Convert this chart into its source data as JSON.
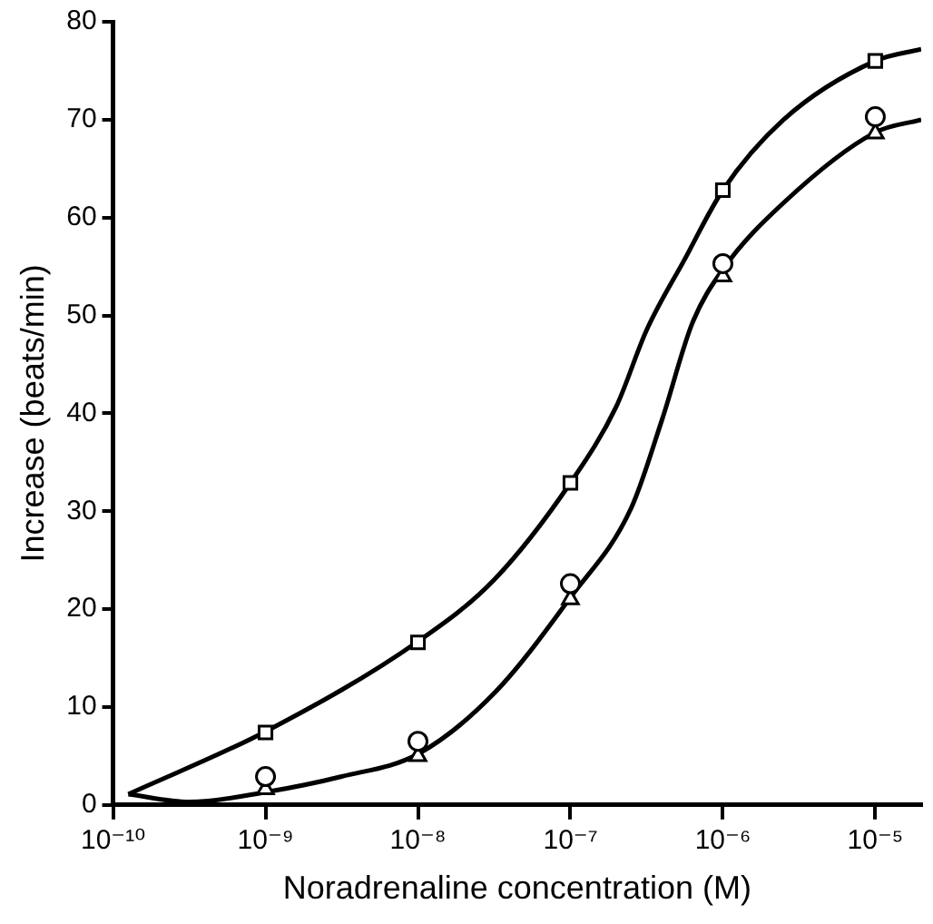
{
  "chart_data": {
    "type": "scatter",
    "xlabel": "Noradrenaline concentration (M)",
    "ylabel": "Increase (beats/min)",
    "log": "x",
    "xlim": [
      1e-10,
      2e-05
    ],
    "xticks": [
      {
        "value": 1e-10,
        "label": "10⁻¹⁰"
      },
      {
        "value": 1e-09,
        "label": "10⁻⁹"
      },
      {
        "value": 1e-08,
        "label": "10⁻⁸"
      },
      {
        "value": 1e-07,
        "label": "10⁻⁷"
      },
      {
        "value": 1e-06,
        "label": "10⁻⁶"
      },
      {
        "value": 1e-05,
        "label": "10⁻⁵"
      }
    ],
    "ylim": [
      0,
      80
    ],
    "yticks": [
      0,
      10,
      20,
      30,
      40,
      50,
      60,
      70,
      80
    ],
    "grid": false,
    "legend": false,
    "series": [
      {
        "marker": "square",
        "color": "#000000",
        "x": [
          1e-09,
          1e-08,
          1e-07,
          1e-06,
          1e-05
        ],
        "values": [
          7.4,
          16.6,
          32.9,
          62.8,
          76.0
        ]
      },
      {
        "marker": "circle",
        "color": "#000000",
        "x": [
          1e-09,
          1e-08,
          1e-07,
          1e-06,
          1e-05
        ],
        "values": [
          2.9,
          6.5,
          22.6,
          55.3,
          70.3
        ]
      },
      {
        "marker": "triangle",
        "color": "#000000",
        "x": [
          1e-09,
          1e-08,
          1e-07,
          1e-06,
          1e-05
        ],
        "values": [
          1.6,
          5.0,
          21.0,
          54.0,
          68.6
        ]
      },
      {
        "type": "line",
        "marker": "none",
        "color": "#000000",
        "x": [
          1.26e-10,
          1e-09,
          1e-08,
          3.16e-08,
          1e-07,
          2e-07,
          3.16e-07,
          5.6e-07,
          1e-06,
          2.5e-06,
          1e-05,
          2e-05
        ],
        "values": [
          1.1,
          7.5,
          16.7,
          23,
          32.9,
          40.7,
          48.5,
          55.7,
          62.8,
          70,
          76,
          77.2
        ]
      },
      {
        "type": "line",
        "marker": "none",
        "color": "#000000",
        "x": [
          1.26e-10,
          3.16e-10,
          1e-09,
          3.16e-09,
          1e-08,
          3.16e-08,
          1e-07,
          2.5e-07,
          4e-07,
          6.3e-07,
          1e-06,
          2.5e-06,
          1e-05,
          2e-05
        ],
        "values": [
          1.1,
          0.3,
          1.3,
          2.9,
          5.2,
          11.4,
          21.2,
          30.3,
          39.4,
          49.2,
          54.7,
          61.5,
          68.7,
          70
        ]
      }
    ]
  }
}
